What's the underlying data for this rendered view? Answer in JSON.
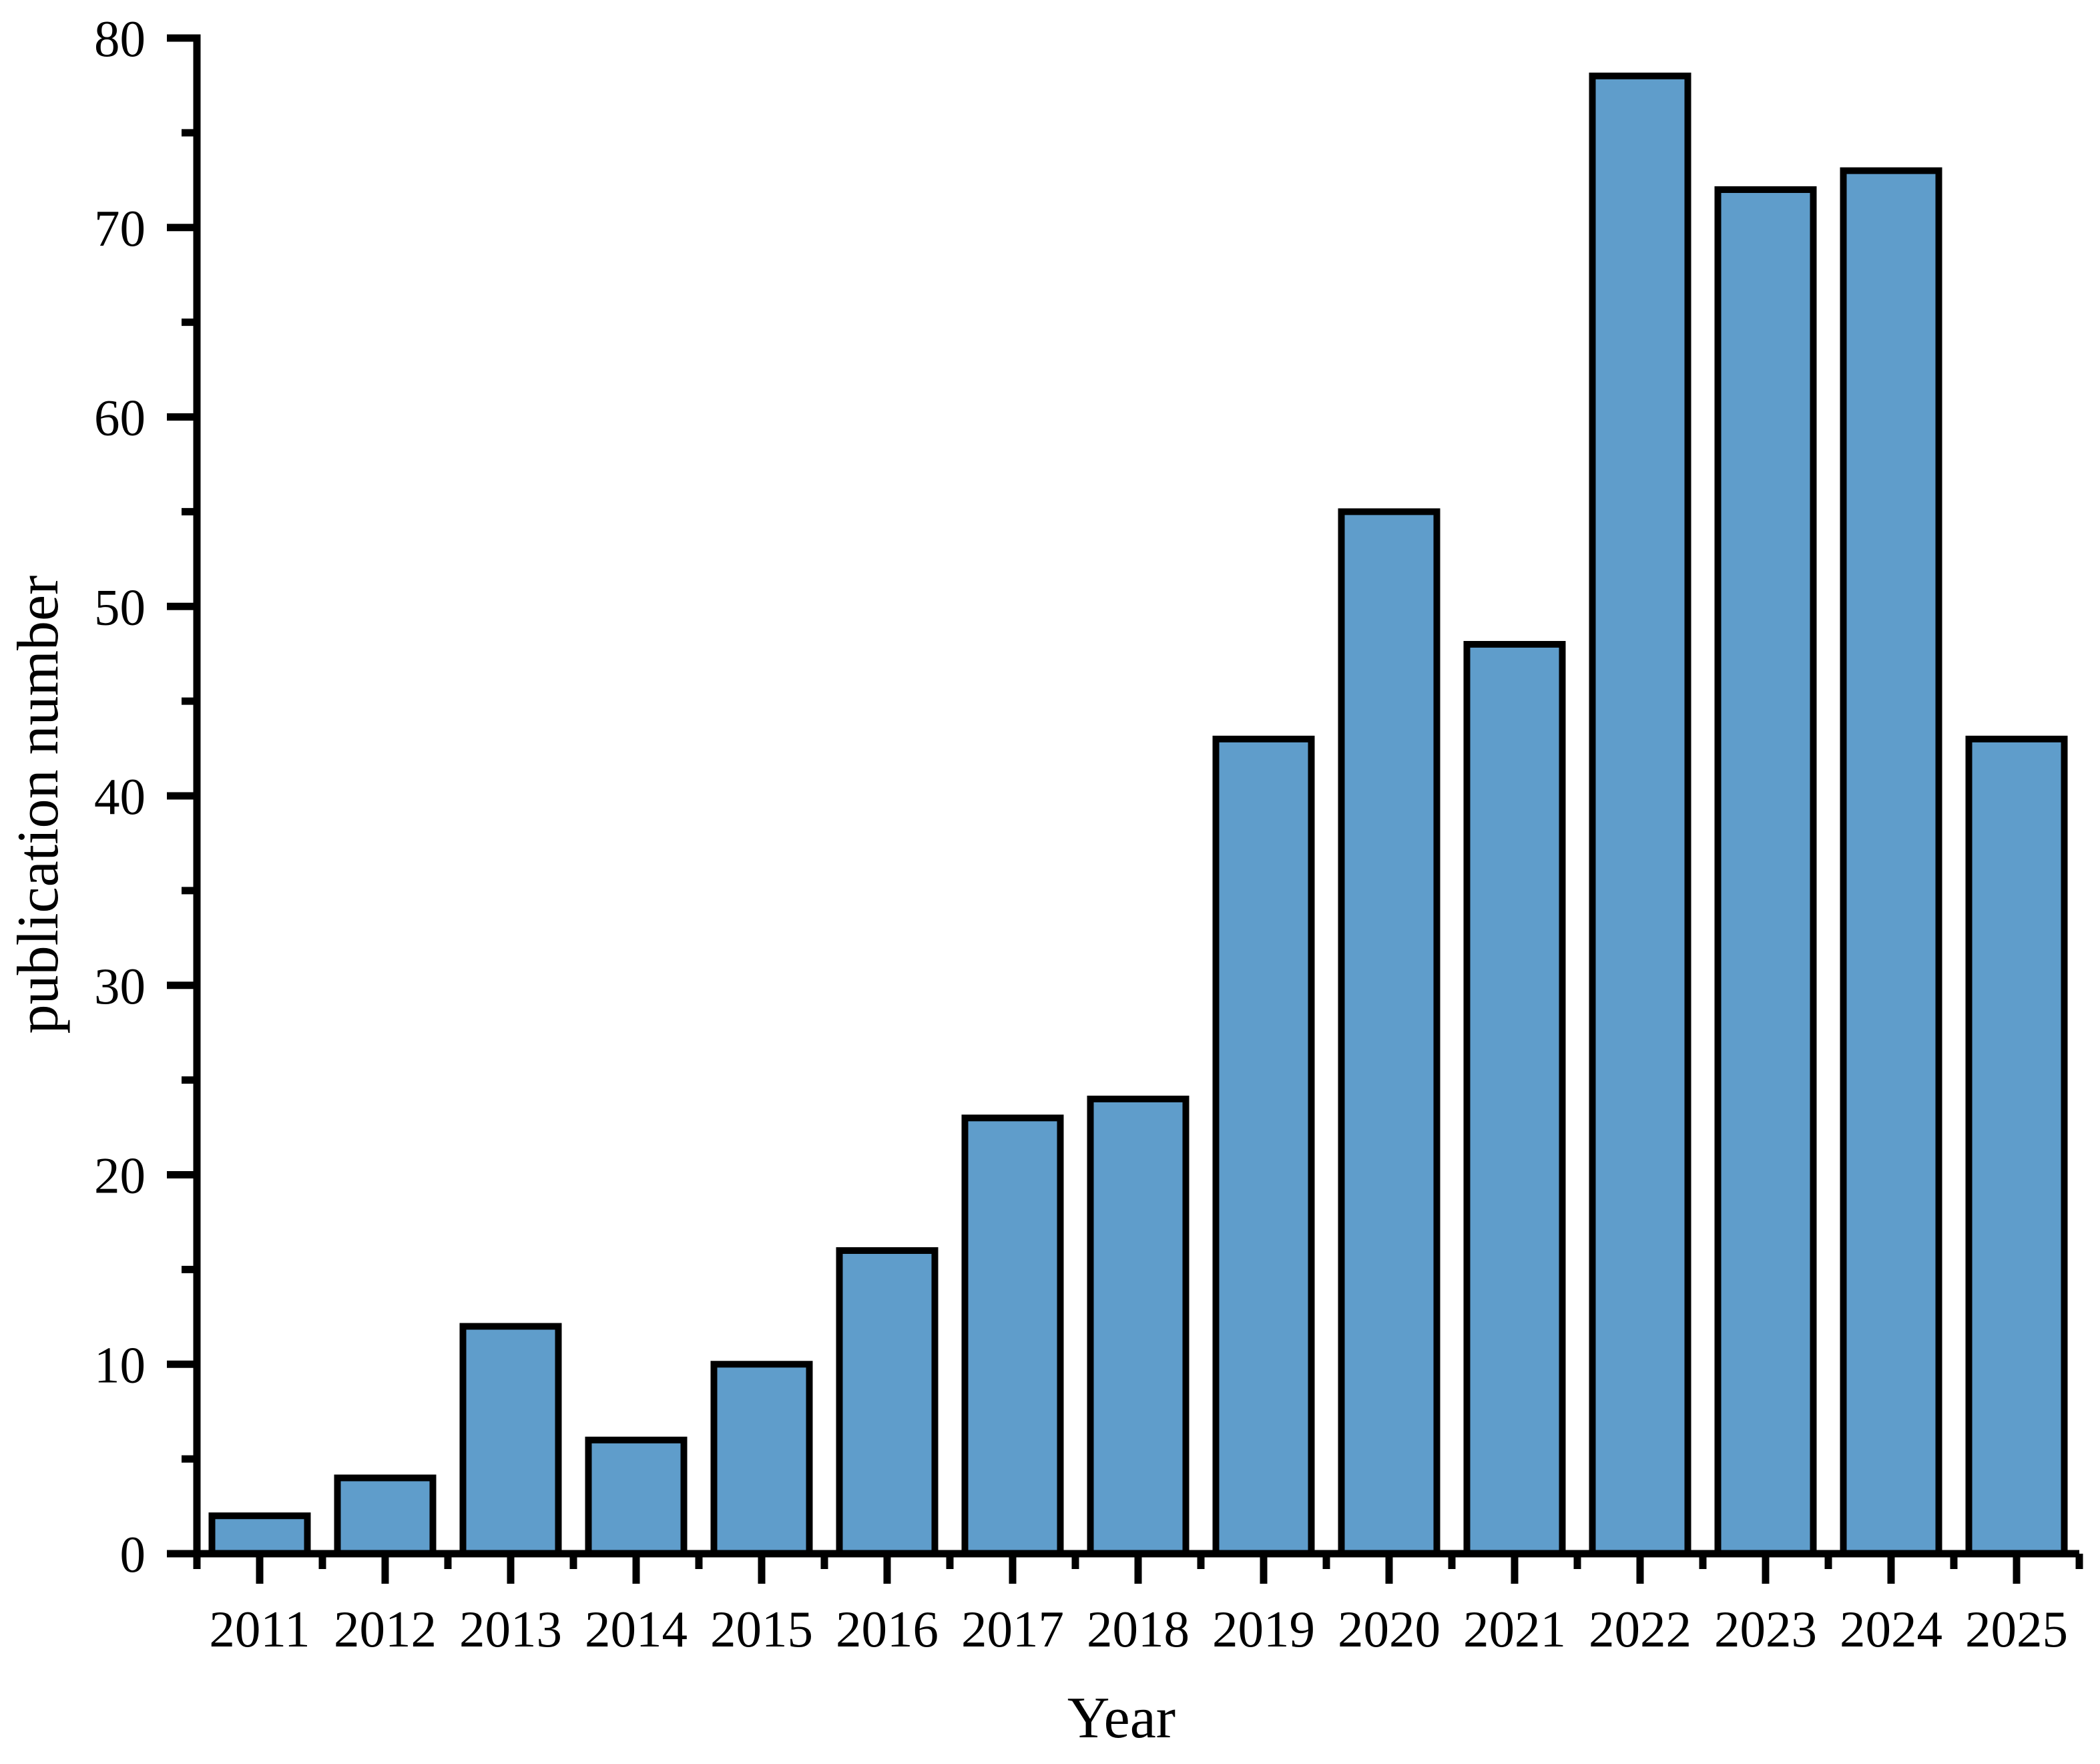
{
  "chart_data": {
    "type": "bar",
    "title": "",
    "xlabel": "Year",
    "ylabel": "publication number",
    "categories": [
      "2011",
      "2012",
      "2013",
      "2014",
      "2015",
      "2016",
      "2017",
      "2018",
      "2019",
      "2020",
      "2021",
      "2022",
      "2023",
      "2024",
      "2025"
    ],
    "values": [
      2,
      4,
      12,
      6,
      10,
      16,
      23,
      24,
      43,
      55,
      48,
      78,
      72,
      73,
      43
    ],
    "ylim": [
      0,
      80
    ],
    "y_major_step": 10,
    "y_minor_step": 5,
    "grid": false,
    "legend": null,
    "frame": "left-bottom-only",
    "bar_fill": "#5F9DCB",
    "bar_stroke": "#000000",
    "axis_color": "#000000",
    "background": "#ffffff"
  }
}
